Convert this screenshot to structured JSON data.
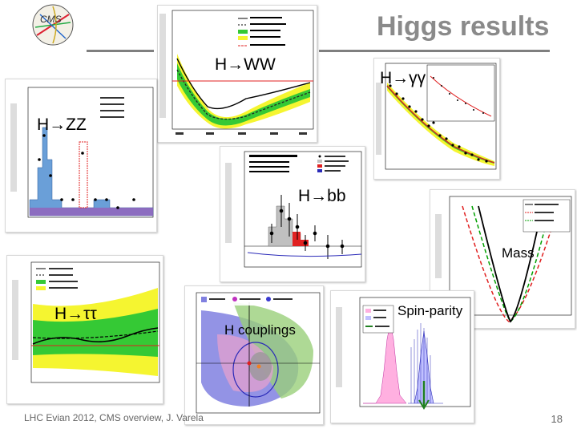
{
  "slide": {
    "title": "Higgs results",
    "footer": "LHC Evian 2012, CMS overview, J. Varela",
    "page_number": "18"
  },
  "logo": {
    "text": "CMS"
  },
  "labels": {
    "hww": "H→WW",
    "hgg": "H→γγ",
    "hzz": "H→ZZ",
    "hbb": "H→bb",
    "htautau": "H→ττ",
    "couplings": "H couplings",
    "mass": "Mass",
    "spin": "Spin-parity"
  },
  "colors": {
    "title": "#8a8a8a",
    "band_green": "#35c935",
    "band_yellow": "#f5f530",
    "signal_red": "#e02020",
    "zz_blue": "#6a9fd8",
    "wh_blue": "#2a2ab8"
  }
}
